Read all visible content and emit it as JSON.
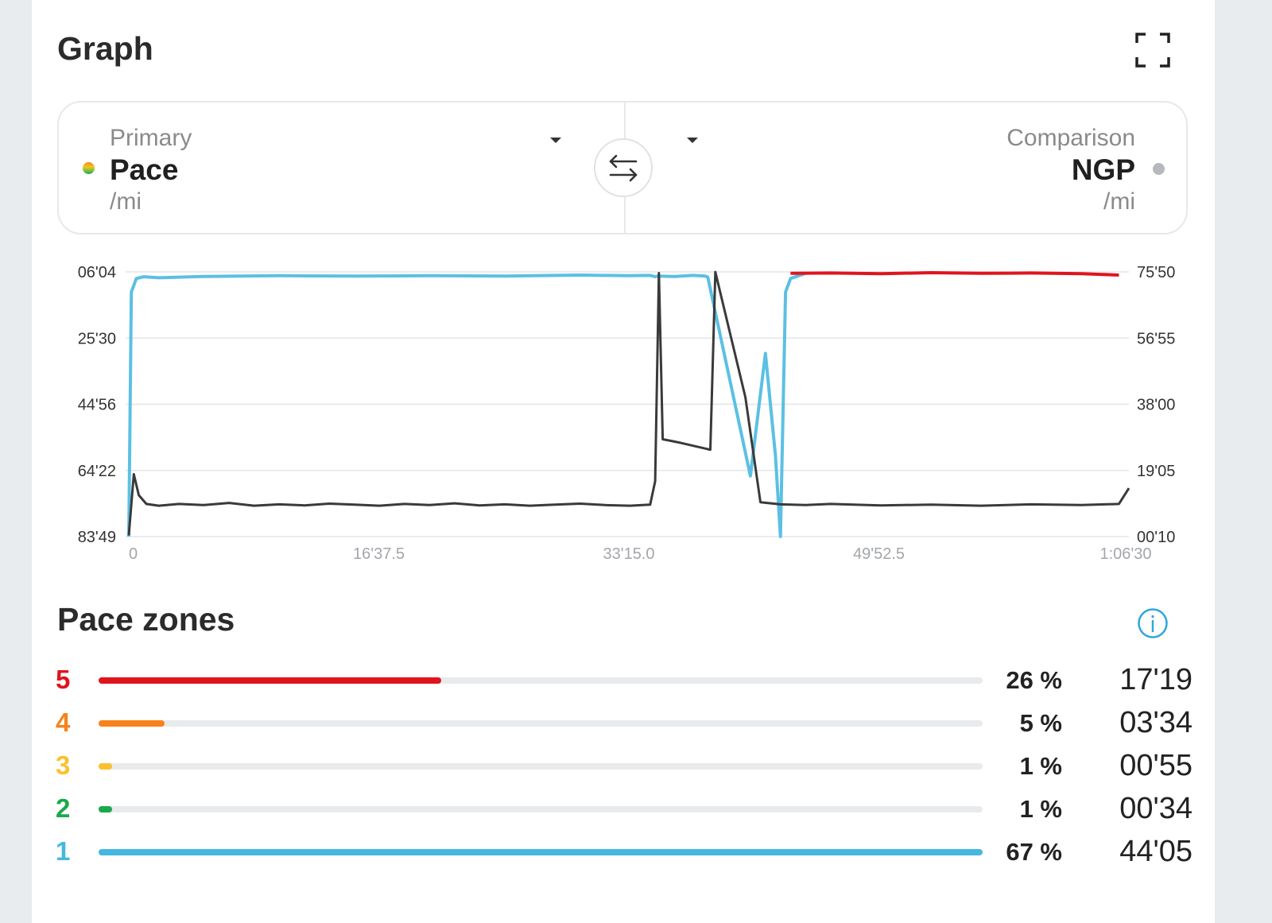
{
  "graph_title": "Graph",
  "primary": {
    "label": "Primary",
    "value": "Pace",
    "unit": "/mi"
  },
  "comparison": {
    "label": "Comparison",
    "value": "NGP",
    "unit": "/mi"
  },
  "chart_data": {
    "type": "line",
    "title": "",
    "y_left_ticks": [
      "06'04",
      "25'30",
      "44'56",
      "64'22",
      "83'49"
    ],
    "y_right_ticks": [
      "75'50",
      "56'55",
      "38'00",
      "19'05",
      "00'10"
    ],
    "x_ticks": [
      "0",
      "16'37.5",
      "33'15.0",
      "49'52.5",
      "1:06'30"
    ],
    "x_range_seconds": [
      0,
      3990
    ],
    "grid": true,
    "series": [
      {
        "color": "#5bc0e3",
        "axis": "left",
        "x_seconds": [
          0,
          10,
          30,
          60,
          120,
          300,
          600,
          900,
          1200,
          1500,
          1800,
          1990,
          2080,
          2100,
          2110,
          2170,
          2180,
          2250,
          2300,
          2310,
          2480,
          2540,
          2580,
          2600,
          2620,
          2640,
          2700
        ],
        "y_minutes": [
          83.8,
          12.0,
          8.0,
          7.5,
          7.8,
          7.4,
          7.2,
          7.3,
          7.2,
          7.3,
          7.0,
          7.2,
          7.1,
          7.5,
          7.3,
          7.4,
          7.4,
          7.1,
          7.3,
          7.6,
          66.0,
          30.0,
          60.0,
          83.8,
          12.0,
          8.0,
          6.5
        ]
      },
      {
        "color": "#3a3a3a",
        "axis": "right",
        "x_seconds": [
          0,
          20,
          40,
          70,
          120,
          200,
          300,
          400,
          500,
          600,
          700,
          800,
          900,
          1000,
          1100,
          1200,
          1300,
          1400,
          1500,
          1600,
          1700,
          1800,
          1900,
          2000,
          2080,
          2100,
          2115,
          2130,
          2200,
          2320,
          2340,
          2460,
          2520,
          2600,
          2700,
          2800,
          3000,
          3200,
          3400,
          3600,
          3800,
          3950,
          3990
        ],
        "y_minutes": [
          0.5,
          18.0,
          12.0,
          9.5,
          9.0,
          9.5,
          9.2,
          9.8,
          9.0,
          9.4,
          9.1,
          9.6,
          9.3,
          9.0,
          9.5,
          9.2,
          9.7,
          9.1,
          9.4,
          9.0,
          9.3,
          9.6,
          9.2,
          9.0,
          9.3,
          16.0,
          75.5,
          28.0,
          27.0,
          25.0,
          75.8,
          40.0,
          10.0,
          9.4,
          9.2,
          9.5,
          9.1,
          9.3,
          9.0,
          9.4,
          9.2,
          9.5,
          14.0
        ]
      }
    ]
  },
  "zones_title": "Pace zones",
  "zones": [
    {
      "zone": "5",
      "pct_value": 26,
      "pct": "26 %",
      "time": "17'19",
      "color": "#e0141e"
    },
    {
      "zone": "4",
      "pct_value": 5,
      "pct": "5 %",
      "time": "03'34",
      "color": "#f7821b"
    },
    {
      "zone": "3",
      "pct_value": 1,
      "pct": "1 %",
      "time": "00'55",
      "color": "#fbc02d"
    },
    {
      "zone": "2",
      "pct_value": 1,
      "pct": "1 %",
      "time": "00'34",
      "color": "#19a94a"
    },
    {
      "zone": "1",
      "pct_value": 67,
      "pct": "67 %",
      "time": "44'05",
      "color": "#45b8e0"
    }
  ]
}
